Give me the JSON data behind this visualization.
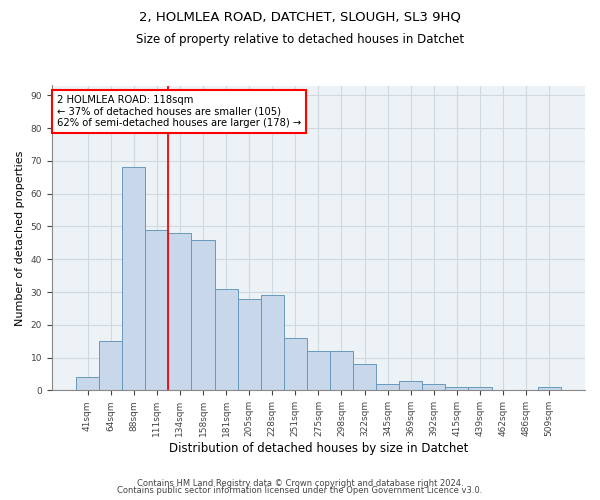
{
  "title1": "2, HOLMLEA ROAD, DATCHET, SLOUGH, SL3 9HQ",
  "title2": "Size of property relative to detached houses in Datchet",
  "xlabel": "Distribution of detached houses by size in Datchet",
  "ylabel": "Number of detached properties",
  "bar_color": "#c8d8ea",
  "bar_edge_color": "#6699bb",
  "categories": [
    "41sqm",
    "64sqm",
    "88sqm",
    "111sqm",
    "134sqm",
    "158sqm",
    "181sqm",
    "205sqm",
    "228sqm",
    "251sqm",
    "275sqm",
    "298sqm",
    "322sqm",
    "345sqm",
    "369sqm",
    "392sqm",
    "415sqm",
    "439sqm",
    "462sqm",
    "486sqm",
    "509sqm"
  ],
  "values": [
    4,
    15,
    68,
    49,
    48,
    46,
    31,
    28,
    29,
    16,
    12,
    12,
    8,
    2,
    3,
    2,
    1,
    1,
    0,
    0,
    1
  ],
  "red_line_x": 3.5,
  "annotation_line1": "2 HOLMLEA ROAD: 118sqm",
  "annotation_line2": "← 37% of detached houses are smaller (105)",
  "annotation_line3": "62% of semi-detached houses are larger (178) →",
  "ylim": [
    0,
    93
  ],
  "yticks": [
    0,
    10,
    20,
    30,
    40,
    50,
    60,
    70,
    80,
    90
  ],
  "footer1": "Contains HM Land Registry data © Crown copyright and database right 2024.",
  "footer2": "Contains public sector information licensed under the Open Government Licence v3.0.",
  "grid_color": "#d0d8e0",
  "background_color": "#edf2f7"
}
